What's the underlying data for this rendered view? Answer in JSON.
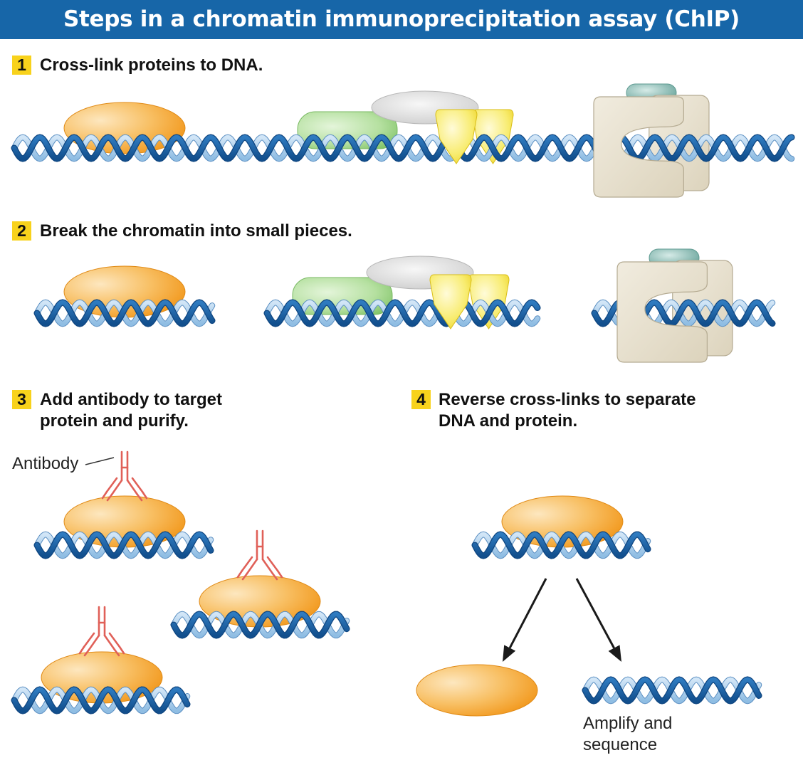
{
  "title": "Steps in a chromatin immunoprecipitation assay (ChIP)",
  "steps": [
    {
      "number": "1",
      "text": "Cross-link proteins to DNA."
    },
    {
      "number": "2",
      "text": "Break the chromatin into small pieces."
    },
    {
      "number": "3",
      "line1": "Add antibody to target",
      "line2": "protein and purify."
    },
    {
      "number": "4",
      "line1": "Reverse cross-links to separate",
      "line2": "DNA and protein."
    }
  ],
  "labels": {
    "antibody": "Antibody",
    "amplify_line1": "Amplify and",
    "amplify_line2": "sequence"
  },
  "colors": {
    "title_bar": "#1766a8",
    "step_badge": "#f8d21c",
    "dna_dark": "#1d62a6",
    "dna_light": "#a9cdec",
    "target_protein": "#f6a83a",
    "green_protein": "#8ccb76",
    "gray_protein": "#d3d3d3",
    "yellow_protein": "#f5e03a",
    "clamp_protein": "#e8e0cc",
    "teal_protein": "#6fa9a1",
    "antibody": "#e06058"
  }
}
